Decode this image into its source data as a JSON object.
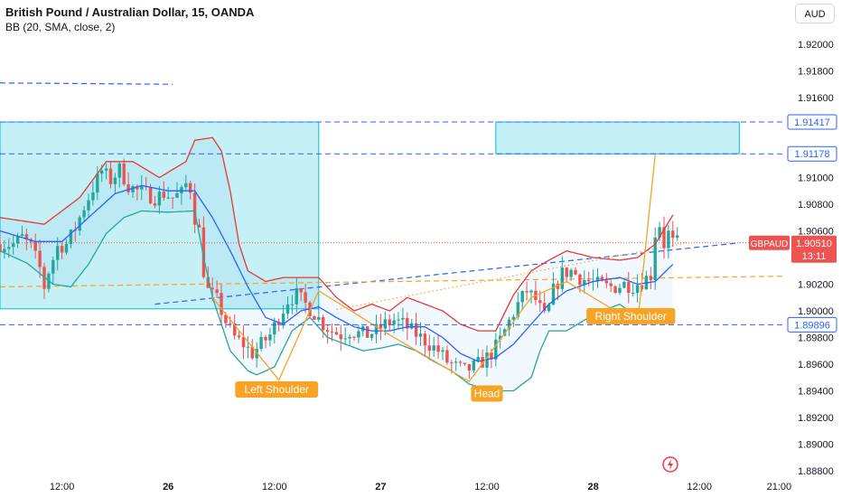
{
  "header": {
    "title": "British Pound / Australian Dollar, 15, OANDA",
    "indicator": "BB (20, SMA, close, 2)",
    "currency": "AUD"
  },
  "colors": {
    "up": "#26a69a",
    "down": "#ef5350",
    "zone_fill": "#b2ebf2",
    "zone_border": "#00bcd4",
    "bb_upper": "#e53935",
    "bb_lower": "#26a69a",
    "bb_basis": "#2962ff",
    "pattern": "#f7a325",
    "level": "#2962ff"
  },
  "chart_data": {
    "type": "candlestick",
    "symbol": "GBPAUD",
    "timeframe": "15",
    "last_price": "1.90510",
    "countdown": "13:11",
    "ylim": [
      1.8874,
      1.9232
    ],
    "y_ticks": [
      "1.92000",
      "1.91800",
      "1.91600",
      "1.91400",
      "1.91200",
      "1.91000",
      "1.90800",
      "1.90600",
      "1.90400",
      "1.90200",
      "1.90000",
      "1.89800",
      "1.89600",
      "1.89400",
      "1.89200",
      "1.89000",
      "1.88800"
    ],
    "x_ticks": [
      {
        "label": "12:00",
        "t": 14
      },
      {
        "label": "26",
        "t": 38
      },
      {
        "label": "12:00",
        "t": 62
      },
      {
        "label": "27",
        "t": 86
      },
      {
        "label": "12:00",
        "t": 110
      },
      {
        "label": "28",
        "t": 134
      },
      {
        "label": "12:00",
        "t": 158
      },
      {
        "label": "21:00",
        "t": 176
      }
    ],
    "price_path": [
      [
        4,
        1.905
      ],
      [
        6,
        1.9055
      ],
      [
        8,
        1.9048
      ],
      [
        10,
        1.9032
      ],
      [
        11,
        1.9018
      ],
      [
        12,
        1.903
      ],
      [
        14,
        1.9048
      ],
      [
        16,
        1.905
      ],
      [
        18,
        1.9062
      ],
      [
        20,
        1.9078
      ],
      [
        22,
        1.9092
      ],
      [
        24,
        1.9105
      ],
      [
        26,
        1.9098
      ],
      [
        28,
        1.9106
      ],
      [
        30,
        1.9094
      ],
      [
        32,
        1.909
      ],
      [
        34,
        1.9088
      ],
      [
        36,
        1.9085
      ],
      [
        38,
        1.9088
      ],
      [
        40,
        1.9085
      ],
      [
        42,
        1.9088
      ],
      [
        43,
        1.9095
      ],
      [
        44,
        1.9092
      ],
      [
        45,
        1.907
      ],
      [
        46,
        1.906
      ],
      [
        47,
        1.903
      ],
      [
        48,
        1.9015
      ],
      [
        50,
        1.9008
      ],
      [
        52,
        1.8992
      ],
      [
        54,
        1.898
      ],
      [
        56,
        1.8975
      ],
      [
        58,
        1.8968
      ],
      [
        60,
        1.8975
      ],
      [
        62,
        1.8982
      ],
      [
        64,
        1.8995
      ],
      [
        66,
        1.9008
      ],
      [
        68,
        1.9012
      ],
      [
        70,
        1.9005
      ],
      [
        72,
        1.8998
      ],
      [
        74,
        1.899
      ],
      [
        76,
        1.8985
      ],
      [
        78,
        1.8982
      ],
      [
        80,
        1.8985
      ],
      [
        82,
        1.8983
      ],
      [
        84,
        1.8982
      ],
      [
        86,
        1.8985
      ],
      [
        88,
        1.899
      ],
      [
        90,
        1.8993
      ],
      [
        92,
        1.899
      ],
      [
        94,
        1.8985
      ],
      [
        96,
        1.898
      ],
      [
        98,
        1.8975
      ],
      [
        100,
        1.897
      ],
      [
        102,
        1.8962
      ],
      [
        104,
        1.8958
      ],
      [
        106,
        1.8955
      ],
      [
        108,
        1.8958
      ],
      [
        110,
        1.8962
      ],
      [
        112,
        1.8968
      ],
      [
        114,
        1.8978
      ],
      [
        116,
        1.8992
      ],
      [
        118,
        1.9005
      ],
      [
        120,
        1.9015
      ],
      [
        122,
        1.9008
      ],
      [
        124,
        1.8995
      ],
      [
        125,
        1.9002
      ],
      [
        126,
        1.9015
      ],
      [
        128,
        1.9028
      ],
      [
        130,
        1.903
      ],
      [
        132,
        1.9025
      ],
      [
        134,
        1.9022
      ],
      [
        136,
        1.902
      ],
      [
        138,
        1.9018
      ],
      [
        140,
        1.9018
      ],
      [
        142,
        1.902
      ],
      [
        144,
        1.9019
      ],
      [
        146,
        1.9022
      ],
      [
        148,
        1.9027
      ],
      [
        149,
        1.9058
      ],
      [
        150,
        1.9065
      ],
      [
        151,
        1.905
      ],
      [
        152,
        1.9058
      ],
      [
        153,
        1.9051
      ]
    ],
    "bb_upper": [
      [
        0,
        1.907
      ],
      [
        10,
        1.9065
      ],
      [
        18,
        1.9085
      ],
      [
        24,
        1.9112
      ],
      [
        30,
        1.9112
      ],
      [
        36,
        1.91
      ],
      [
        42,
        1.9112
      ],
      [
        44,
        1.9128
      ],
      [
        48,
        1.913
      ],
      [
        50,
        1.912
      ],
      [
        52,
        1.909
      ],
      [
        54,
        1.905
      ],
      [
        56,
        1.903
      ],
      [
        60,
        1.9022
      ],
      [
        64,
        1.9025
      ],
      [
        68,
        1.9025
      ],
      [
        72,
        1.9025
      ],
      [
        76,
        1.901
      ],
      [
        80,
        1.9
      ],
      [
        84,
        1.9005
      ],
      [
        88,
        1.9
      ],
      [
        92,
        1.901
      ],
      [
        96,
        1.9005
      ],
      [
        100,
        1.9
      ],
      [
        104,
        1.899
      ],
      [
        108,
        1.8985
      ],
      [
        112,
        1.8985
      ],
      [
        116,
        1.9012
      ],
      [
        120,
        1.903
      ],
      [
        124,
        1.9038
      ],
      [
        128,
        1.9045
      ],
      [
        134,
        1.904
      ],
      [
        140,
        1.9038
      ],
      [
        144,
        1.904
      ],
      [
        148,
        1.905
      ],
      [
        152,
        1.9072
      ]
    ],
    "bb_basis": [
      [
        0,
        1.906
      ],
      [
        8,
        1.9052
      ],
      [
        14,
        1.9052
      ],
      [
        20,
        1.907
      ],
      [
        26,
        1.9088
      ],
      [
        32,
        1.9094
      ],
      [
        38,
        1.909
      ],
      [
        44,
        1.909
      ],
      [
        48,
        1.907
      ],
      [
        52,
        1.9045
      ],
      [
        56,
        1.9018
      ],
      [
        60,
        1.8995
      ],
      [
        64,
        1.899
      ],
      [
        68,
        1.9
      ],
      [
        72,
        1.9003
      ],
      [
        76,
        1.8995
      ],
      [
        80,
        1.8988
      ],
      [
        84,
        1.8985
      ],
      [
        88,
        1.8985
      ],
      [
        92,
        1.8988
      ],
      [
        96,
        1.8988
      ],
      [
        100,
        1.898
      ],
      [
        104,
        1.8968
      ],
      [
        108,
        1.8962
      ],
      [
        112,
        1.8965
      ],
      [
        116,
        1.8975
      ],
      [
        120,
        1.899
      ],
      [
        124,
        1.9005
      ],
      [
        128,
        1.9015
      ],
      [
        134,
        1.9022
      ],
      [
        140,
        1.9025
      ],
      [
        144,
        1.902
      ],
      [
        148,
        1.9022
      ],
      [
        152,
        1.9035
      ]
    ],
    "bb_lower": [
      [
        0,
        1.9045
      ],
      [
        6,
        1.9036
      ],
      [
        12,
        1.902
      ],
      [
        16,
        1.9018
      ],
      [
        20,
        1.9035
      ],
      [
        24,
        1.9058
      ],
      [
        28,
        1.907
      ],
      [
        32,
        1.9075
      ],
      [
        38,
        1.9074
      ],
      [
        44,
        1.9075
      ],
      [
        46,
        1.904
      ],
      [
        48,
        1.901
      ],
      [
        52,
        1.897
      ],
      [
        56,
        1.8955
      ],
      [
        58,
        1.8952
      ],
      [
        62,
        1.8958
      ],
      [
        66,
        1.8985
      ],
      [
        70,
        1.8995
      ],
      [
        74,
        1.898
      ],
      [
        78,
        1.8975
      ],
      [
        82,
        1.897
      ],
      [
        86,
        1.8972
      ],
      [
        90,
        1.8975
      ],
      [
        94,
        1.897
      ],
      [
        98,
        1.8962
      ],
      [
        102,
        1.8955
      ],
      [
        106,
        1.8945
      ],
      [
        112,
        1.894
      ],
      [
        116,
        1.894
      ],
      [
        118,
        1.8945
      ],
      [
        120,
        1.895
      ],
      [
        122,
        1.897
      ],
      [
        124,
        1.8985
      ],
      [
        128,
        1.8985
      ],
      [
        132,
        1.8993
      ],
      [
        136,
        1.9
      ],
      [
        140,
        1.9005
      ],
      [
        144,
        1.8995
      ],
      [
        148,
        1.8995
      ],
      [
        152,
        1.9
      ]
    ],
    "zones": [
      {
        "t1": 0,
        "t2": 72,
        "top": 1.91417,
        "bottom": 1.90015
      },
      {
        "t1": 112,
        "t2": 167,
        "top": 1.91417,
        "bottom": 1.91178
      }
    ],
    "levels": [
      {
        "price": 1.91417,
        "label": "1.91417"
      },
      {
        "price": 1.91178,
        "label": "1.91178"
      },
      {
        "price": 1.89896,
        "label": "1.89896"
      }
    ],
    "trendlines": [
      {
        "t1": 0,
        "p1": 1.9171,
        "t2": 39,
        "p2": 1.917,
        "color": "#2962ff",
        "dash": true
      },
      {
        "t1": 35,
        "p1": 1.9005,
        "t2": 167,
        "p2": 1.9051,
        "color": "#2962ff",
        "dash": true
      },
      {
        "t1": 0,
        "p1": 1.9018,
        "t2": 180,
        "p2": 1.9026,
        "color": "#f7a325",
        "dash": true
      },
      {
        "t1": 76,
        "p1": 1.9001,
        "t2": 155,
        "p2": 1.9051,
        "color": "#f7a325",
        "dash": "dot"
      }
    ],
    "pattern_path": [
      [
        48,
        1.901
      ],
      [
        63,
        1.8948
      ],
      [
        72,
        1.9015
      ],
      [
        88,
        1.8982
      ],
      [
        106,
        1.8947
      ],
      [
        120,
        1.901
      ],
      [
        128,
        1.9022
      ],
      [
        144,
        1.899
      ],
      [
        148,
        1.9117
      ]
    ],
    "annotations": [
      {
        "text": "Left Shoulder",
        "t": 62.5,
        "price": 1.8941
      },
      {
        "text": "Head",
        "t": 110,
        "price": 1.8938
      },
      {
        "text": "Right Shoulder",
        "t": 142.5,
        "price": 1.8996
      }
    ]
  }
}
